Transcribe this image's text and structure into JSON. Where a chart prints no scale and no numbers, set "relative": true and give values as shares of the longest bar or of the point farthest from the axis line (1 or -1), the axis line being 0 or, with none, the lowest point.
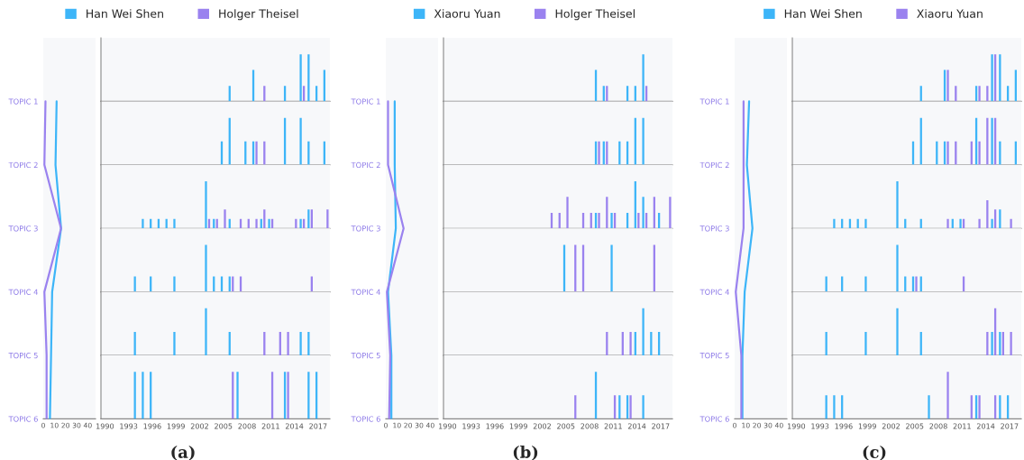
{
  "chart_data": [
    {
      "type": "line",
      "orientation": "horizontal",
      "categories": [
        "TOPIC 1",
        "TOPIC 2",
        "TOPIC 3",
        "TOPIC 4",
        "TOPIC 5",
        "TOPIC 6"
      ],
      "xlim": [
        0,
        47
      ],
      "xticks": [
        0,
        10,
        20,
        30,
        40
      ],
      "marker": "none",
      "line_style": "solid",
      "series": [
        {
          "color": "#3db5f8",
          "values": [
            12,
            11,
            16,
            8,
            7,
            6
          ]
        },
        {
          "color": "#9a82ef",
          "values": [
            2,
            1,
            16,
            1,
            3,
            3
          ]
        }
      ]
    },
    {
      "type": "bar",
      "relative": true,
      "xlim": [
        1989.5,
        2018.5
      ],
      "xticks": [
        1990,
        1993,
        1996,
        1999,
        2002,
        2005,
        2008,
        2011,
        2014,
        2017
      ],
      "tick_labels": false,
      "legend": "top",
      "series": [
        {
          "name": "Han Wei Shen",
          "color": "#3db5f8",
          "x": [
            2006,
            2009,
            2013,
            2015,
            2016,
            2017,
            2018
          ],
          "values": [
            0.33,
            0.67,
            0.33,
            1,
            1,
            0.33,
            0.67
          ]
        },
        {
          "name": "Holger Theisel",
          "color": "#9a82ef",
          "x": [
            2010,
            2015
          ],
          "values": [
            0.33,
            0.33
          ]
        }
      ]
    },
    {
      "type": "bar",
      "relative": true,
      "xlim": [
        1989.5,
        2018.5
      ],
      "xticks": [
        1990,
        1993,
        1996,
        1999,
        2002,
        2005,
        2008,
        2011,
        2014,
        2017
      ],
      "tick_labels": false,
      "series": [
        {
          "color": "#3db5f8",
          "x": [
            2005,
            2006,
            2008,
            2009,
            2013,
            2015,
            2016,
            2018
          ],
          "values": [
            0.5,
            1,
            0.5,
            0.5,
            1,
            1,
            0.5,
            0.5
          ]
        },
        {
          "color": "#9a82ef",
          "x": [
            2009,
            2010
          ],
          "values": [
            0.5,
            0.5
          ]
        }
      ]
    },
    {
      "type": "bar",
      "relative": true,
      "xlim": [
        1989.5,
        2018.5
      ],
      "xticks": [
        1990,
        1993,
        1996,
        1999,
        2002,
        2005,
        2008,
        2011,
        2014,
        2017
      ],
      "tick_labels": false,
      "series": [
        {
          "color": "#3db5f8",
          "x": [
            1995,
            1996,
            1997,
            1998,
            1999,
            2003,
            2004,
            2006,
            2010,
            2011,
            2015,
            2016
          ],
          "values": [
            0.2,
            0.2,
            0.2,
            0.2,
            0.2,
            1,
            0.2,
            0.2,
            0.2,
            0.2,
            0.2,
            0.4
          ]
        },
        {
          "color": "#9a82ef",
          "x": [
            2003,
            2004,
            2005,
            2007,
            2008,
            2009,
            2010,
            2011,
            2014,
            2015,
            2016,
            2018
          ],
          "values": [
            0.2,
            0.2,
            0.4,
            0.2,
            0.2,
            0.2,
            0.4,
            0.2,
            0.2,
            0.2,
            0.4,
            0.4
          ]
        }
      ]
    },
    {
      "type": "bar",
      "relative": true,
      "xlim": [
        1989.5,
        2018.5
      ],
      "xticks": [
        1990,
        1993,
        1996,
        1999,
        2002,
        2005,
        2008,
        2011,
        2014,
        2017
      ],
      "tick_labels": false,
      "series": [
        {
          "color": "#3db5f8",
          "x": [
            1994,
            1996,
            1999,
            2003,
            2004,
            2005,
            2006
          ],
          "values": [
            0.33,
            0.33,
            0.33,
            1,
            0.33,
            0.33,
            0.33
          ]
        },
        {
          "color": "#9a82ef",
          "x": [
            2006,
            2007,
            2016
          ],
          "values": [
            0.33,
            0.33,
            0.33
          ]
        }
      ]
    },
    {
      "type": "bar",
      "relative": true,
      "xlim": [
        1989.5,
        2018.5
      ],
      "xticks": [
        1990,
        1993,
        1996,
        1999,
        2002,
        2005,
        2008,
        2011,
        2014,
        2017
      ],
      "tick_labels": false,
      "series": [
        {
          "color": "#3db5f8",
          "x": [
            1994,
            1999,
            2003,
            2006,
            2015,
            2016
          ],
          "values": [
            0.5,
            0.5,
            1,
            0.5,
            0.5,
            0.5
          ]
        },
        {
          "color": "#9a82ef",
          "x": [
            2010,
            2012,
            2013
          ],
          "values": [
            0.5,
            0.5,
            0.5
          ]
        }
      ]
    },
    {
      "type": "bar",
      "relative": true,
      "xlim": [
        1989.5,
        2018.5
      ],
      "xticks": [
        1990,
        1993,
        1996,
        1999,
        2002,
        2005,
        2008,
        2011,
        2014,
        2017
      ],
      "tick_labels": "x",
      "xlabel": "(a)",
      "series": [
        {
          "color": "#3db5f8",
          "x": [
            1994,
            1995,
            1996,
            2007,
            2013,
            2016,
            2017
          ],
          "values": [
            1,
            1,
            1,
            1,
            1,
            1,
            1
          ]
        },
        {
          "color": "#9a82ef",
          "x": [
            2006,
            2011,
            2013
          ],
          "values": [
            1,
            1,
            1
          ]
        }
      ]
    },
    {
      "type": "line",
      "orientation": "horizontal",
      "categories": [
        "TOPIC 1",
        "TOPIC 2",
        "TOPIC 3",
        "TOPIC 4",
        "TOPIC 5",
        "TOPIC 6"
      ],
      "xlim": [
        0,
        47
      ],
      "xticks": [
        0,
        10,
        20,
        30,
        40
      ],
      "marker": "none",
      "line_style": "solid",
      "series": [
        {
          "color": "#3db5f8",
          "values": [
            8,
            8,
            9,
            2,
            5,
            5
          ]
        },
        {
          "color": "#9a82ef",
          "values": [
            2,
            2,
            16,
            1,
            4,
            3
          ]
        }
      ]
    },
    {
      "type": "bar",
      "relative": true,
      "xlim": [
        1989.5,
        2018.5
      ],
      "xticks": [
        1990,
        1993,
        1996,
        1999,
        2002,
        2005,
        2008,
        2011,
        2014,
        2017
      ],
      "tick_labels": false,
      "legend": "top",
      "series": [
        {
          "name": "Xiaoru Yuan",
          "color": "#3db5f8",
          "x": [
            2009,
            2010,
            2013,
            2014,
            2015
          ],
          "values": [
            0.67,
            0.33,
            0.33,
            0.33,
            1
          ]
        },
        {
          "name": "Holger Theisel",
          "color": "#9a82ef",
          "x": [
            2010,
            2015
          ],
          "values": [
            0.33,
            0.33
          ]
        }
      ]
    },
    {
      "type": "bar",
      "relative": true,
      "xlim": [
        1989.5,
        2018.5
      ],
      "xticks": [
        1990,
        1993,
        1996,
        1999,
        2002,
        2005,
        2008,
        2011,
        2014,
        2017
      ],
      "tick_labels": false,
      "series": [
        {
          "color": "#3db5f8",
          "x": [
            2009,
            2010,
            2012,
            2013,
            2014,
            2015
          ],
          "values": [
            0.5,
            0.5,
            0.5,
            0.5,
            1,
            1
          ]
        },
        {
          "color": "#9a82ef",
          "x": [
            2009,
            2010
          ],
          "values": [
            0.5,
            0.5
          ]
        }
      ]
    },
    {
      "type": "bar",
      "relative": true,
      "xlim": [
        1989.5,
        2018.5
      ],
      "xticks": [
        1990,
        1993,
        1996,
        1999,
        2002,
        2005,
        2008,
        2011,
        2014,
        2017
      ],
      "tick_labels": false,
      "series": [
        {
          "color": "#3db5f8",
          "x": [
            2009,
            2011,
            2013,
            2014,
            2015,
            2017
          ],
          "values": [
            0.33,
            0.33,
            0.33,
            1,
            0.67,
            0.33
          ]
        },
        {
          "color": "#9a82ef",
          "x": [
            2003,
            2004,
            2005,
            2007,
            2008,
            2009,
            2010,
            2011,
            2014,
            2015,
            2016,
            2018
          ],
          "values": [
            0.33,
            0.33,
            0.67,
            0.33,
            0.33,
            0.33,
            0.67,
            0.33,
            0.33,
            0.33,
            0.67,
            0.67
          ]
        }
      ]
    },
    {
      "type": "bar",
      "relative": true,
      "xlim": [
        1989.5,
        2018.5
      ],
      "xticks": [
        1990,
        1993,
        1996,
        1999,
        2002,
        2005,
        2008,
        2011,
        2014,
        2017
      ],
      "tick_labels": false,
      "series": [
        {
          "color": "#3db5f8",
          "x": [
            2005,
            2011
          ],
          "values": [
            1,
            1
          ]
        },
        {
          "color": "#9a82ef",
          "x": [
            2006,
            2007,
            2016
          ],
          "values": [
            1,
            1,
            1
          ]
        }
      ]
    },
    {
      "type": "bar",
      "relative": true,
      "xlim": [
        1989.5,
        2018.5
      ],
      "xticks": [
        1990,
        1993,
        1996,
        1999,
        2002,
        2005,
        2008,
        2011,
        2014,
        2017
      ],
      "tick_labels": false,
      "series": [
        {
          "color": "#3db5f8",
          "x": [
            2014,
            2015,
            2016,
            2017
          ],
          "values": [
            0.5,
            1,
            0.5,
            0.5
          ]
        },
        {
          "color": "#9a82ef",
          "x": [
            2010,
            2012,
            2013
          ],
          "values": [
            0.5,
            0.5,
            0.5
          ]
        }
      ]
    },
    {
      "type": "bar",
      "relative": true,
      "xlim": [
        1989.5,
        2018.5
      ],
      "xticks": [
        1990,
        1993,
        1996,
        1999,
        2002,
        2005,
        2008,
        2011,
        2014,
        2017
      ],
      "tick_labels": "x",
      "xlabel": "(b)",
      "series": [
        {
          "color": "#3db5f8",
          "x": [
            2009,
            2012,
            2013,
            2015
          ],
          "values": [
            1,
            0.5,
            0.5,
            0.5
          ]
        },
        {
          "color": "#9a82ef",
          "x": [
            2006,
            2011,
            2013
          ],
          "values": [
            0.5,
            0.5,
            0.5
          ]
        }
      ]
    },
    {
      "type": "line",
      "orientation": "horizontal",
      "categories": [
        "TOPIC 1",
        "TOPIC 2",
        "TOPIC 3",
        "TOPIC 4",
        "TOPIC 5",
        "TOPIC 6"
      ],
      "xlim": [
        0,
        47
      ],
      "xticks": [
        0,
        10,
        20,
        30,
        40
      ],
      "marker": "none",
      "line_style": "solid",
      "series": [
        {
          "color": "#3db5f8",
          "values": [
            13,
            11,
            16,
            9,
            7,
            7
          ]
        },
        {
          "color": "#9a82ef",
          "values": [
            8,
            8,
            8,
            1,
            6,
            6
          ]
        }
      ]
    },
    {
      "type": "bar",
      "relative": true,
      "xlim": [
        1989.5,
        2018.5
      ],
      "xticks": [
        1990,
        1993,
        1996,
        1999,
        2002,
        2005,
        2008,
        2011,
        2014,
        2017
      ],
      "tick_labels": false,
      "legend": "top",
      "series": [
        {
          "name": "Han Wei Shen",
          "color": "#3db5f8",
          "x": [
            2006,
            2009,
            2013,
            2015,
            2016,
            2017,
            2018
          ],
          "values": [
            0.33,
            0.67,
            0.33,
            1,
            1,
            0.33,
            0.67
          ]
        },
        {
          "name": "Xiaoru Yuan",
          "color": "#9a82ef",
          "x": [
            2009,
            2010,
            2013,
            2014,
            2015
          ],
          "values": [
            0.67,
            0.33,
            0.33,
            0.33,
            1
          ]
        }
      ]
    },
    {
      "type": "bar",
      "relative": true,
      "xlim": [
        1989.5,
        2018.5
      ],
      "xticks": [
        1990,
        1993,
        1996,
        1999,
        2002,
        2005,
        2008,
        2011,
        2014,
        2017
      ],
      "tick_labels": false,
      "series": [
        {
          "color": "#3db5f8",
          "x": [
            2005,
            2006,
            2008,
            2009,
            2013,
            2015,
            2016,
            2018
          ],
          "values": [
            0.5,
            1,
            0.5,
            0.5,
            1,
            1,
            0.5,
            0.5
          ]
        },
        {
          "color": "#9a82ef",
          "x": [
            2009,
            2010,
            2012,
            2013,
            2014,
            2015
          ],
          "values": [
            0.5,
            0.5,
            0.5,
            0.5,
            1,
            1
          ]
        }
      ]
    },
    {
      "type": "bar",
      "relative": true,
      "xlim": [
        1989.5,
        2018.5
      ],
      "xticks": [
        1990,
        1993,
        1996,
        1999,
        2002,
        2005,
        2008,
        2011,
        2014,
        2017
      ],
      "tick_labels": false,
      "series": [
        {
          "color": "#3db5f8",
          "x": [
            1995,
            1996,
            1997,
            1998,
            1999,
            2003,
            2004,
            2006,
            2010,
            2011,
            2015,
            2016
          ],
          "values": [
            0.2,
            0.2,
            0.2,
            0.2,
            0.2,
            1,
            0.2,
            0.2,
            0.2,
            0.2,
            0.2,
            0.4
          ]
        },
        {
          "color": "#9a82ef",
          "x": [
            2009,
            2011,
            2013,
            2014,
            2015,
            2017
          ],
          "values": [
            0.2,
            0.2,
            0.2,
            0.6,
            0.4,
            0.2
          ]
        }
      ]
    },
    {
      "type": "bar",
      "relative": true,
      "xlim": [
        1989.5,
        2018.5
      ],
      "xticks": [
        1990,
        1993,
        1996,
        1999,
        2002,
        2005,
        2008,
        2011,
        2014,
        2017
      ],
      "tick_labels": false,
      "series": [
        {
          "color": "#3db5f8",
          "x": [
            1994,
            1996,
            1999,
            2003,
            2004,
            2005,
            2006
          ],
          "values": [
            0.33,
            0.33,
            0.33,
            1,
            0.33,
            0.33,
            0.33
          ]
        },
        {
          "color": "#9a82ef",
          "x": [
            2005,
            2011
          ],
          "values": [
            0.33,
            0.33
          ]
        }
      ]
    },
    {
      "type": "bar",
      "relative": true,
      "xlim": [
        1989.5,
        2018.5
      ],
      "xticks": [
        1990,
        1993,
        1996,
        1999,
        2002,
        2005,
        2008,
        2011,
        2014,
        2017
      ],
      "tick_labels": false,
      "series": [
        {
          "color": "#3db5f8",
          "x": [
            1994,
            1999,
            2003,
            2006,
            2015,
            2016
          ],
          "values": [
            0.5,
            0.5,
            1,
            0.5,
            0.5,
            0.5
          ]
        },
        {
          "color": "#9a82ef",
          "x": [
            2014,
            2015,
            2016,
            2017
          ],
          "values": [
            0.5,
            1,
            0.5,
            0.5
          ]
        }
      ]
    },
    {
      "type": "bar",
      "relative": true,
      "xlim": [
        1989.5,
        2018.5
      ],
      "xticks": [
        1990,
        1993,
        1996,
        1999,
        2002,
        2005,
        2008,
        2011,
        2014,
        2017
      ],
      "tick_labels": "x",
      "xlabel": "(c)",
      "series": [
        {
          "color": "#3db5f8",
          "x": [
            1994,
            1995,
            1996,
            2007,
            2013,
            2016,
            2017
          ],
          "values": [
            0.5,
            0.5,
            0.5,
            0.5,
            0.5,
            0.5,
            0.5
          ]
        },
        {
          "color": "#9a82ef",
          "x": [
            2009,
            2012,
            2013,
            2015
          ],
          "values": [
            1,
            0.5,
            0.5,
            0.5
          ]
        }
      ]
    }
  ]
}
